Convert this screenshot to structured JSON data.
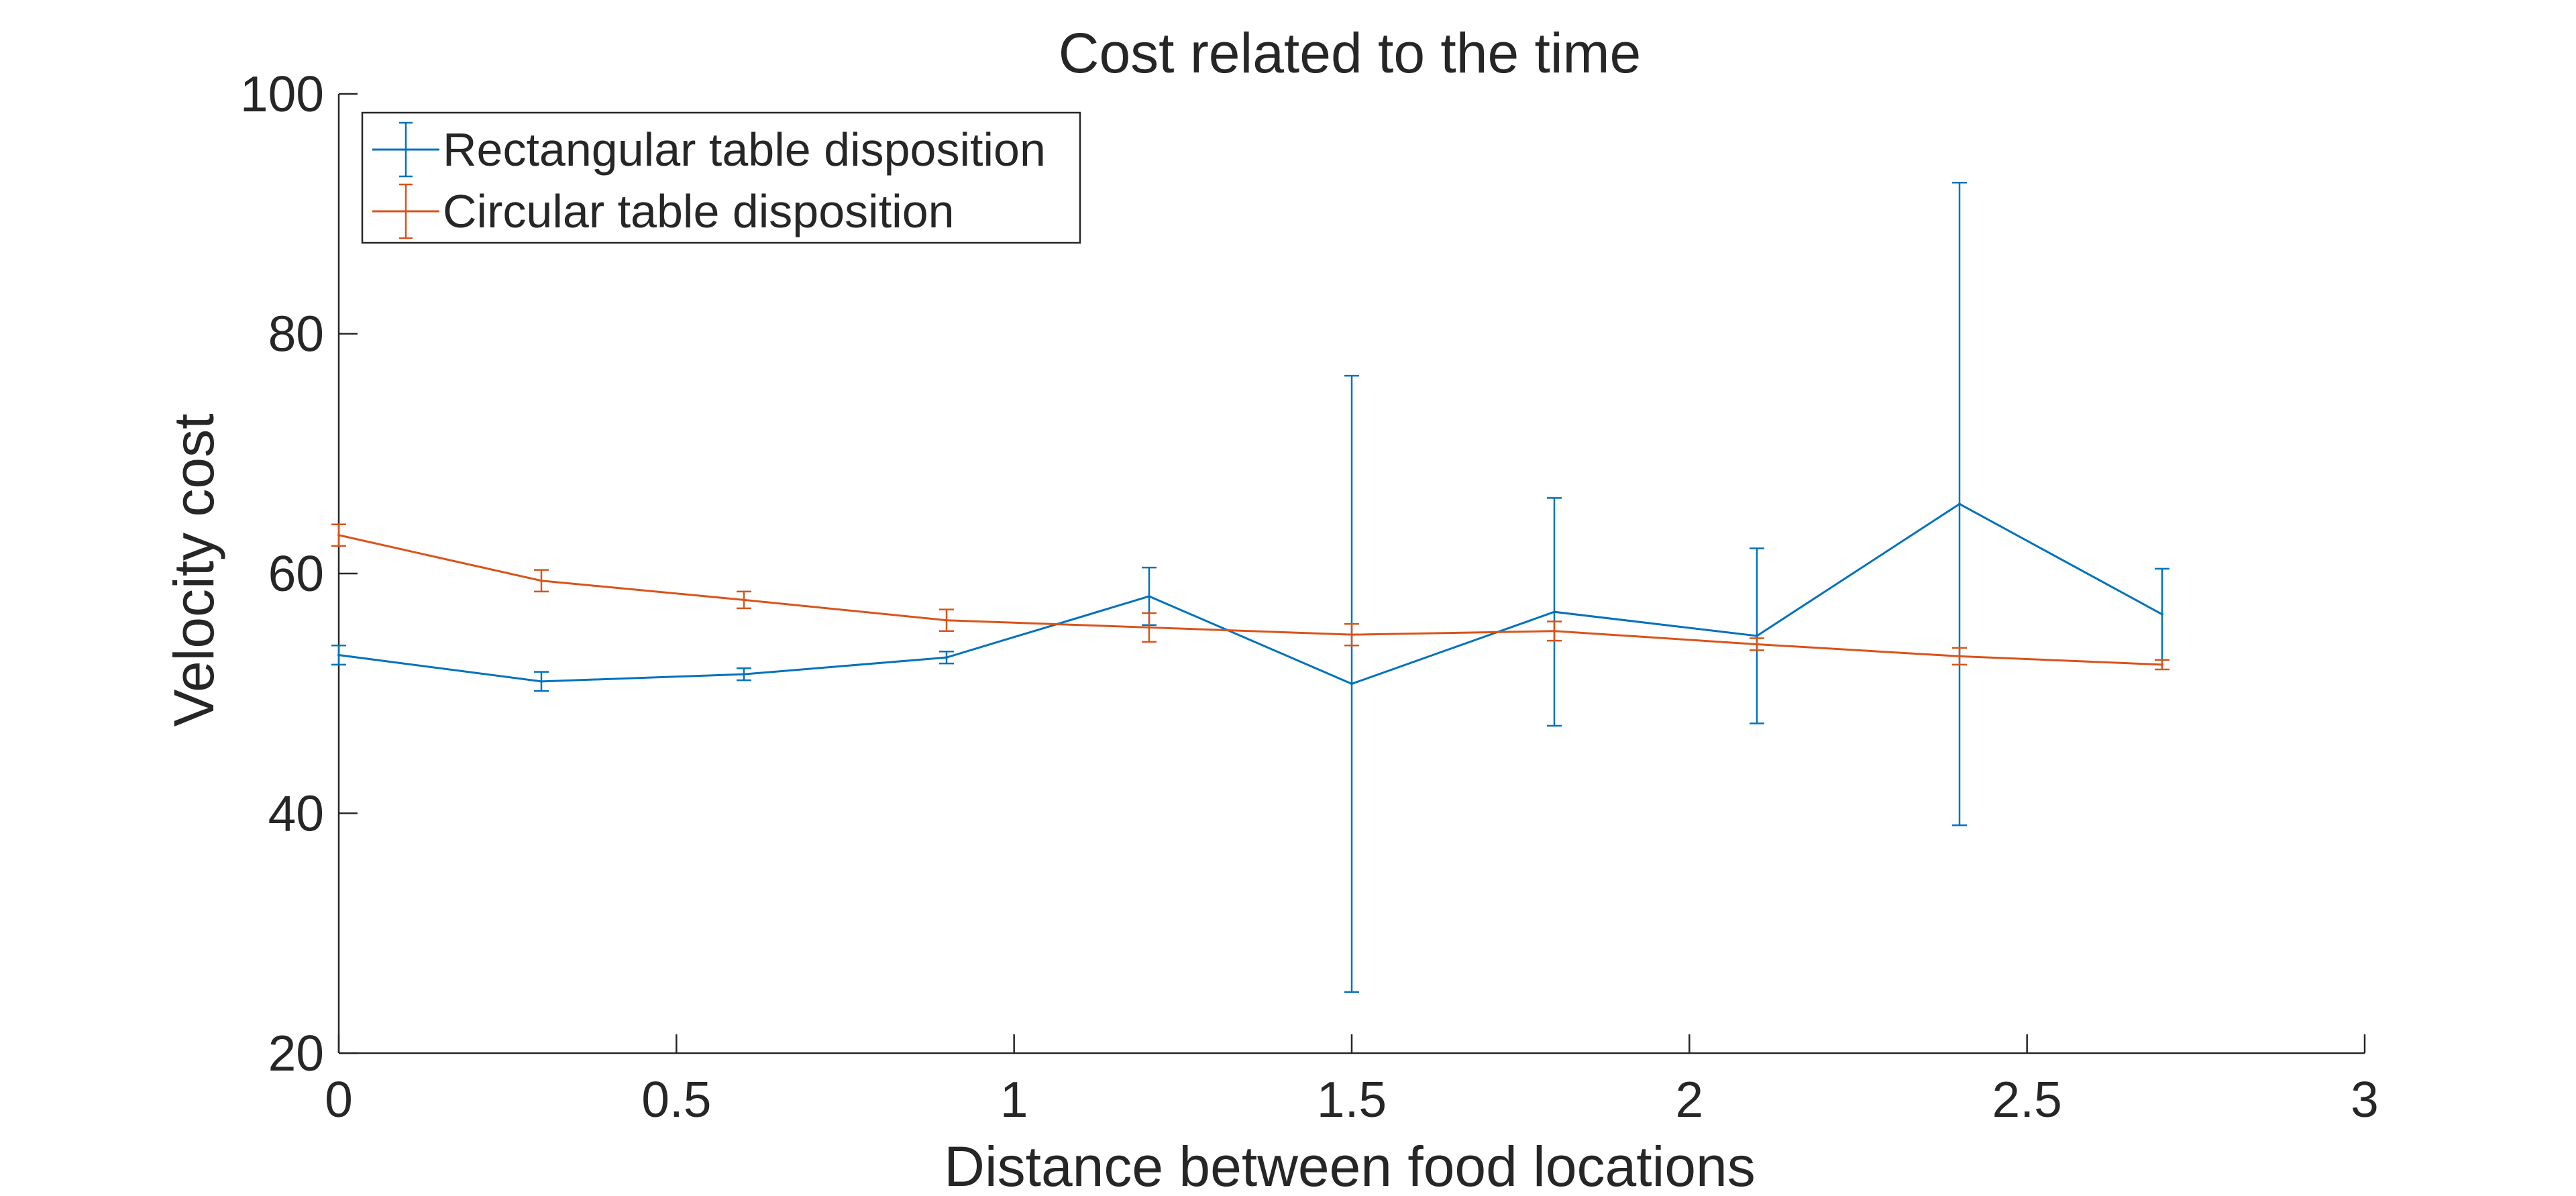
{
  "chart_data": {
    "type": "line",
    "title": "Cost related to the time",
    "xlabel": "Distance between food locations",
    "ylabel": "Velocity cost",
    "xlim": [
      0,
      3
    ],
    "ylim": [
      20,
      100
    ],
    "xticks": [
      "0",
      "0.5",
      "1",
      "1.5",
      "2",
      "2.5",
      "3"
    ],
    "yticks": [
      "20",
      "40",
      "60",
      "80",
      "100"
    ],
    "xtick_values": [
      0,
      0.5,
      1,
      1.5,
      2,
      2.5,
      3
    ],
    "ytick_values": [
      20,
      40,
      60,
      80,
      100
    ],
    "grid": false,
    "legend_position": "top-left",
    "error_bars": true,
    "series": [
      {
        "name": "Rectangular table disposition",
        "color": "#0072BD",
        "x": [
          0,
          0.3,
          0.6,
          0.9,
          1.2,
          1.5,
          1.8,
          2.1,
          2.4,
          2.7
        ],
        "y": [
          53.2,
          51.0,
          51.6,
          53.0,
          58.1,
          50.8,
          56.8,
          54.8,
          65.8,
          56.6
        ],
        "err": [
          0.8,
          0.8,
          0.5,
          0.5,
          2.4,
          25.7,
          9.5,
          7.3,
          26.8,
          3.8
        ]
      },
      {
        "name": "Circular table disposition",
        "color": "#D95319",
        "x": [
          0,
          0.3,
          0.6,
          0.9,
          1.2,
          1.5,
          1.8,
          2.1,
          2.4,
          2.7
        ],
        "y": [
          63.2,
          59.4,
          57.8,
          56.1,
          55.5,
          54.9,
          55.2,
          54.1,
          53.1,
          52.4
        ],
        "err": [
          0.9,
          0.9,
          0.7,
          0.9,
          1.2,
          0.9,
          0.8,
          0.5,
          0.7,
          0.4
        ]
      }
    ]
  }
}
